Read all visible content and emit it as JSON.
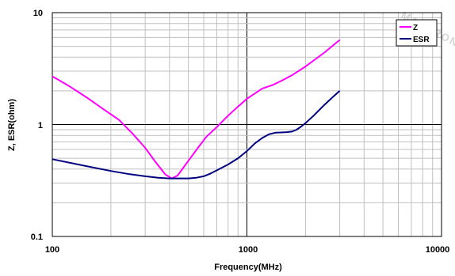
{
  "chart_data": {
    "type": "line",
    "title": "",
    "xlabel": "Frequency(MHz)",
    "ylabel": "Z, ESR(ohm)",
    "xscale": "log",
    "yscale": "log",
    "xlim": [
      100,
      10000
    ],
    "ylim": [
      0.1,
      10
    ],
    "grid": true,
    "legend_position": "top-right",
    "x_tick_labels": [
      "100",
      "1000",
      "10000"
    ],
    "y_tick_labels": [
      "10",
      "1",
      "0.1"
    ],
    "series": [
      {
        "name": "Z",
        "color": "#ff00ff",
        "x": [
          100,
          120,
          150,
          180,
          220,
          260,
          300,
          340,
          380,
          410,
          440,
          480,
          520,
          560,
          620,
          700,
          800,
          900,
          1000,
          1100,
          1200,
          1350,
          1500,
          1700,
          2000,
          2500,
          3000
        ],
        "y": [
          2.7,
          2.25,
          1.75,
          1.4,
          1.1,
          0.82,
          0.62,
          0.46,
          0.36,
          0.33,
          0.35,
          0.43,
          0.52,
          0.62,
          0.78,
          0.95,
          1.2,
          1.45,
          1.7,
          1.9,
          2.1,
          2.25,
          2.45,
          2.75,
          3.3,
          4.4,
          5.7
        ]
      },
      {
        "name": "ESR",
        "color": "#000080",
        "x": [
          100,
          150,
          200,
          250,
          300,
          350,
          400,
          450,
          500,
          550,
          600,
          650,
          700,
          800,
          900,
          1000,
          1100,
          1200,
          1300,
          1400,
          1500,
          1600,
          1700,
          1800,
          1900,
          2000,
          2200,
          2500,
          2800,
          3000
        ],
        "y": [
          0.49,
          0.425,
          0.385,
          0.36,
          0.345,
          0.335,
          0.33,
          0.33,
          0.33,
          0.335,
          0.345,
          0.365,
          0.39,
          0.44,
          0.5,
          0.58,
          0.68,
          0.76,
          0.82,
          0.845,
          0.85,
          0.855,
          0.865,
          0.9,
          0.96,
          1.03,
          1.2,
          1.5,
          1.8,
          2.0
        ]
      }
    ]
  },
  "watermark": {
    "text": "MANTRONICS",
    "color": "#d6d6d6"
  }
}
